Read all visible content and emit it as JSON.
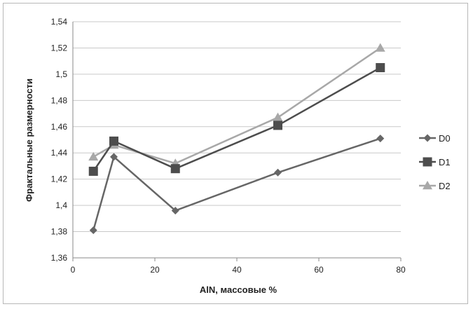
{
  "chart_data": {
    "type": "line",
    "title": "",
    "xlabel": "AlN, массовые %",
    "ylabel": "Фрактальные размерности",
    "xlim": [
      0,
      80
    ],
    "ylim": [
      1.36,
      1.54
    ],
    "x_ticks": [
      0,
      20,
      40,
      60,
      80
    ],
    "x_tick_labels": [
      "0",
      "20",
      "40",
      "60",
      "80"
    ],
    "y_ticks": [
      1.36,
      1.38,
      1.4,
      1.42,
      1.44,
      1.46,
      1.48,
      1.5,
      1.52,
      1.54
    ],
    "y_tick_labels": [
      "1,36",
      "1,38",
      "1,4",
      "1,42",
      "1,44",
      "1,46",
      "1,48",
      "1,5",
      "1,52",
      "1,54"
    ],
    "grid": "horizontal",
    "legend_position": "right",
    "x": [
      5,
      10,
      25,
      50,
      75
    ],
    "series": [
      {
        "name": "D0",
        "marker": "diamond",
        "color": "#666666",
        "values": [
          1.381,
          1.437,
          1.396,
          1.425,
          1.451
        ]
      },
      {
        "name": "D1",
        "marker": "square",
        "color": "#4d4d4d",
        "values": [
          1.426,
          1.449,
          1.428,
          1.461,
          1.505
        ]
      },
      {
        "name": "D2",
        "marker": "triangle",
        "color": "#a8a8a8",
        "values": [
          1.437,
          1.446,
          1.432,
          1.467,
          1.52
        ]
      }
    ]
  }
}
